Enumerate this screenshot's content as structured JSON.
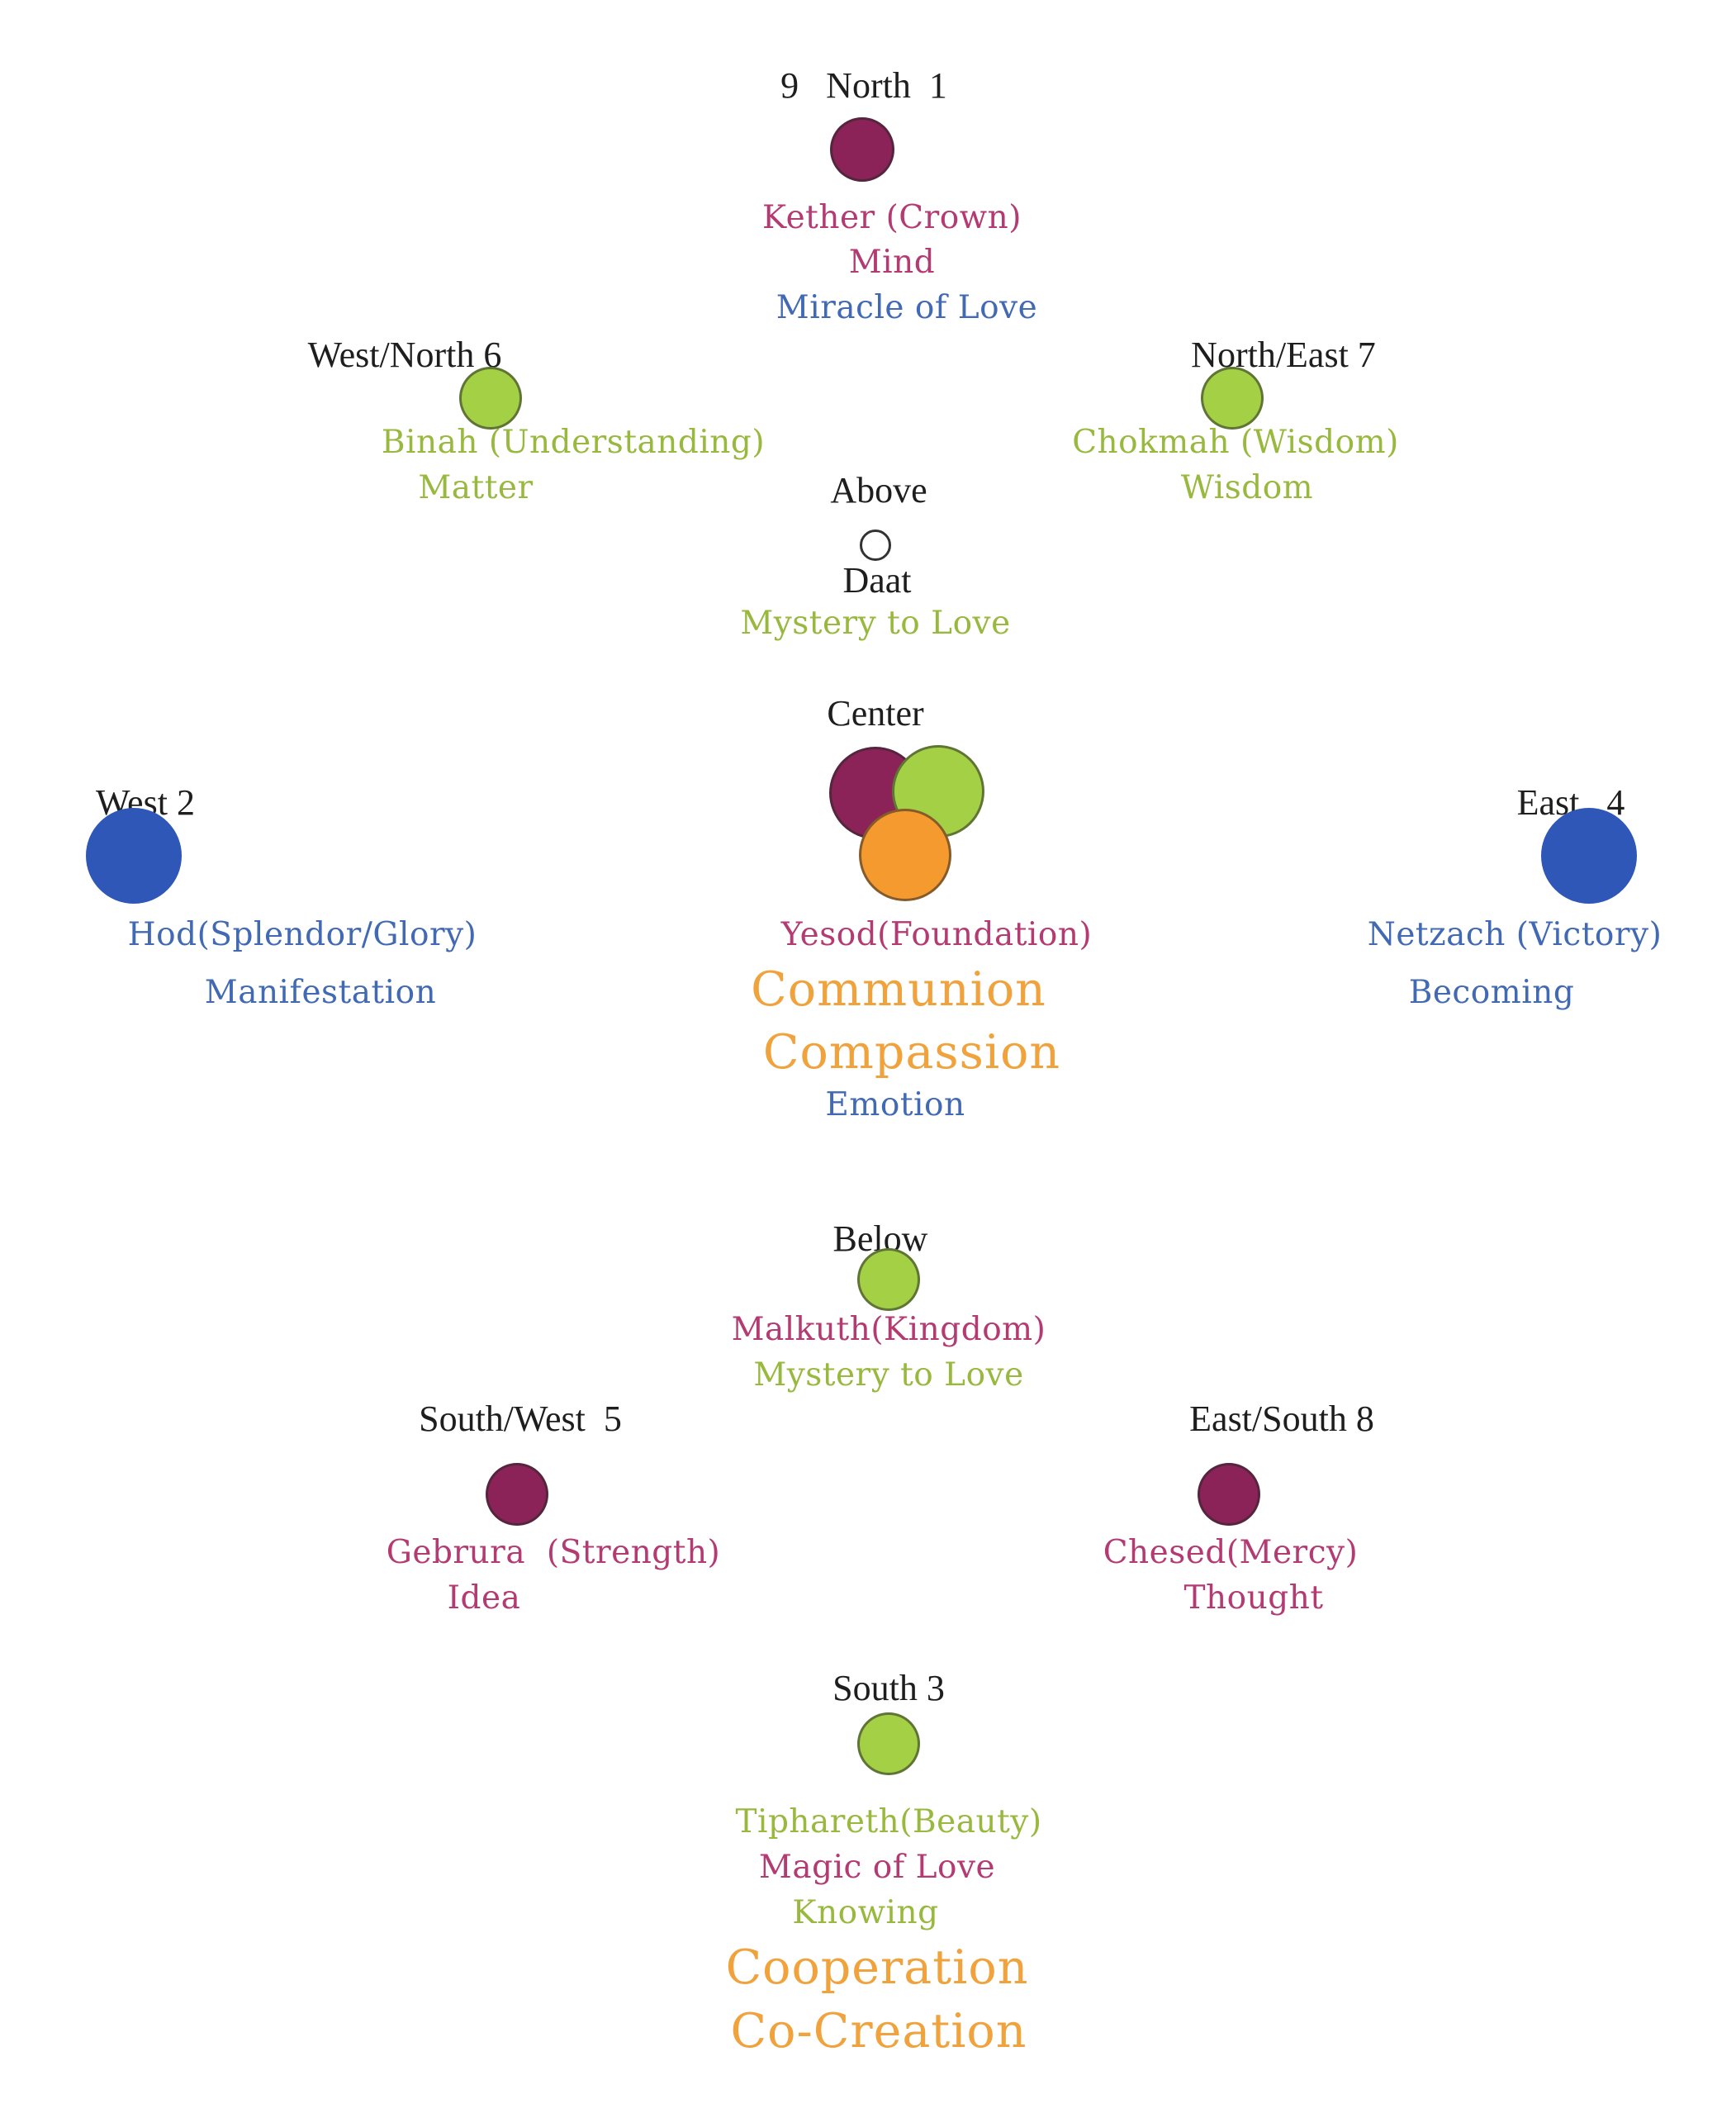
{
  "colors": {
    "maroon": "#8c2358",
    "green": "#a3d045",
    "blue": "#2e57b8",
    "orange": "#f59a2e",
    "pink_text": "#b43a72",
    "green_text": "#98b83e",
    "blue_text": "#4169b4",
    "orange_text": "#f0a23c",
    "black_text": "#1e1e1e"
  },
  "north": {
    "heading": "9   North  1",
    "lines": [
      "Kether (Crown)",
      "Mind",
      "Miracle of Love"
    ]
  },
  "west_north": {
    "heading": "West/North 6",
    "lines": [
      "Binah (Understanding)",
      "Matter"
    ]
  },
  "north_east": {
    "heading": "North/East 7",
    "lines": [
      "Chokmah (Wisdom)",
      "Wisdom"
    ]
  },
  "above": {
    "heading": "Above",
    "lines": [
      "Daat",
      "Mystery to Love"
    ]
  },
  "center": {
    "heading": "Center",
    "lines": [
      "Yesod(Foundation)",
      "Communion",
      "Compassion",
      "Emotion"
    ]
  },
  "west": {
    "heading": "West 2",
    "lines": [
      "Hod(Splendor/Glory)",
      "Manifestation"
    ]
  },
  "east": {
    "heading": "East   4",
    "lines": [
      "Netzach (Victory)",
      "Becoming"
    ]
  },
  "below": {
    "heading": "Below",
    "lines": [
      "Malkuth(Kingdom)",
      "Mystery to Love"
    ]
  },
  "south_west": {
    "heading": "South/West  5",
    "lines": [
      "Gebrura  (Strength)",
      "Idea"
    ]
  },
  "east_south": {
    "heading": "East/South 8",
    "lines": [
      "Chesed(Mercy)",
      "Thought"
    ]
  },
  "south": {
    "heading": "South 3",
    "lines": [
      "Tiphareth(Beauty)",
      "Magic of Love",
      "Knowing",
      "Cooperation",
      "Co-Creation"
    ]
  }
}
